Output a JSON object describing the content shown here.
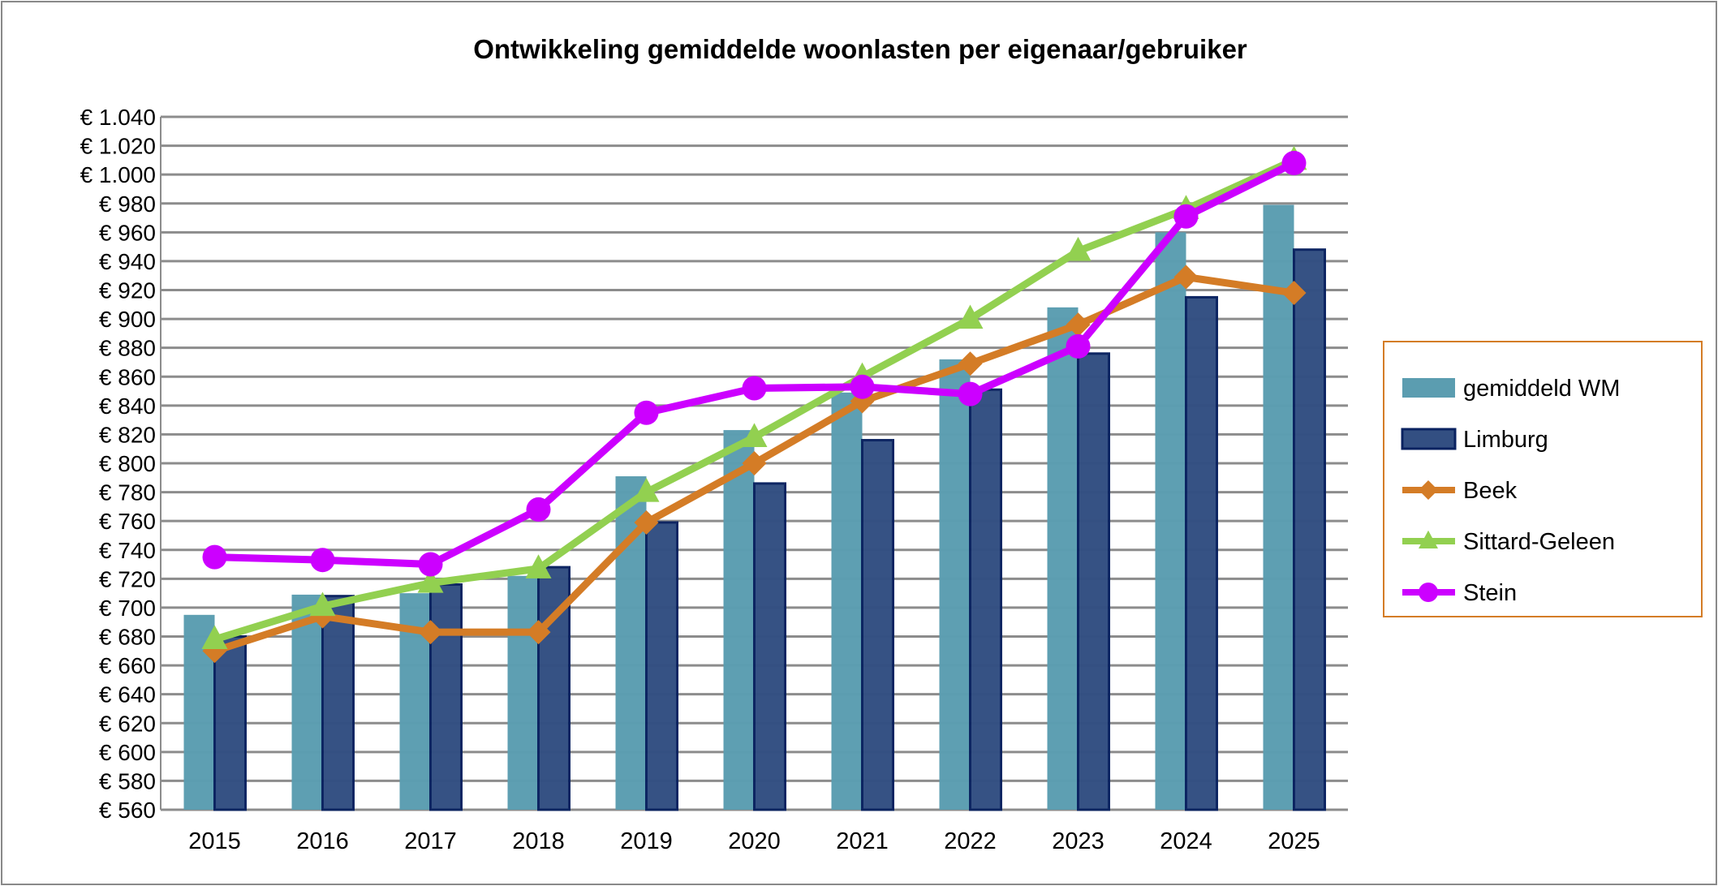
{
  "chart_data": {
    "type": "bar",
    "title": "Ontwikkeling gemiddelde woonlasten per eigenaar/gebruiker",
    "categories": [
      "2015",
      "2016",
      "2017",
      "2018",
      "2019",
      "2020",
      "2021",
      "2022",
      "2023",
      "2024",
      "2025"
    ],
    "ylim": [
      560,
      1040
    ],
    "ytick_step": 20,
    "y_tick_labels": [
      "€ 560",
      "€ 580",
      "€ 600",
      "€ 620",
      "€ 640",
      "€ 660",
      "€ 680",
      "€ 700",
      "€ 720",
      "€ 740",
      "€ 760",
      "€ 780",
      "€ 800",
      "€ 820",
      "€ 840",
      "€ 860",
      "€ 880",
      "€ 900",
      "€ 920",
      "€ 940",
      "€ 960",
      "€ 980",
      "€ 1.000",
      "€ 1.020",
      "€ 1.040"
    ],
    "grid": true,
    "legend_position": "right",
    "series": [
      {
        "name": "gemiddeld WM",
        "kind": "bar",
        "color": "#5b9db0",
        "values": [
          695,
          709,
          710,
          722,
          791,
          823,
          849,
          872,
          908,
          960,
          979
        ]
      },
      {
        "name": "Limburg",
        "kind": "bar",
        "color": "#334f82",
        "values": [
          680,
          708,
          716,
          728,
          759,
          786,
          816,
          851,
          876,
          915,
          948
        ]
      },
      {
        "name": "Beek",
        "kind": "line",
        "marker": "diamond",
        "color": "#d47c26",
        "values": [
          670,
          694,
          683,
          683,
          759,
          800,
          843,
          869,
          896,
          929,
          918
        ]
      },
      {
        "name": "Sittard-Geleen",
        "kind": "line",
        "marker": "triangle",
        "color": "#92d050",
        "values": [
          678,
          701,
          717,
          727,
          780,
          818,
          860,
          900,
          947,
          976,
          1010
        ]
      },
      {
        "name": "Stein",
        "kind": "line",
        "marker": "circle",
        "color": "#cc00ff",
        "values": [
          735,
          733,
          730,
          768,
          835,
          852,
          853,
          848,
          881,
          971,
          1008
        ]
      }
    ]
  }
}
